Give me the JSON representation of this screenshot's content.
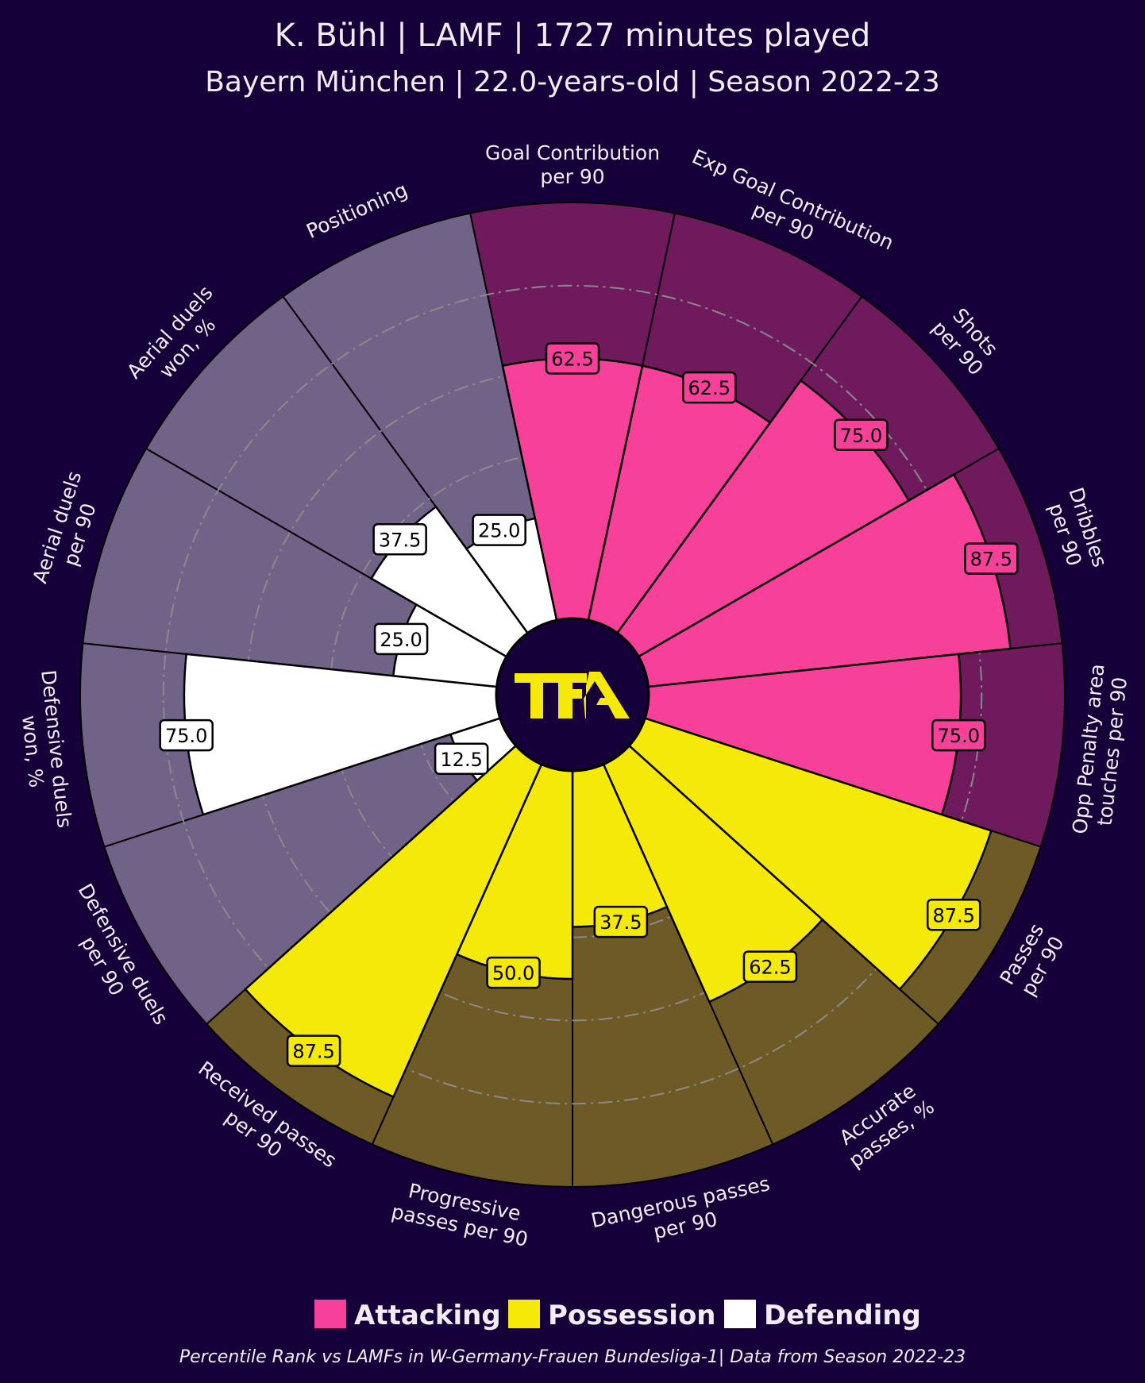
{
  "header": {
    "title": "K. Bühl | LAMF | 1727 minutes played",
    "subtitle": "Bayern München | 22.0-years-old | Season 2022-23"
  },
  "logo_text": "TFA",
  "footer": "Percentile Rank vs LAMFs in W-Germany-Frauen Bundesliga-1| Data from Season 2022-23",
  "colors": {
    "background": "#15003a",
    "Attacking": "#f7409a",
    "Attacking_bg": "#6e1a5c",
    "Possession": "#f5e909",
    "Possession_bg": "#6e5a26",
    "Defending": "#ffffff",
    "Defending_bg": "#716388",
    "logo": "#f5e909"
  },
  "chart_data": {
    "type": "pie",
    "subtype": "polar-bar (pizza)",
    "range": [
      0,
      100
    ],
    "gridlines": [
      20,
      40,
      60,
      80
    ],
    "legend": [
      "Attacking",
      "Possession",
      "Defending"
    ],
    "legend_placement": "bottom",
    "params": [
      {
        "label": [
          "Goal Contribution",
          "per 90"
        ],
        "value": 62.5,
        "group": "Attacking"
      },
      {
        "label": [
          "Exp Goal Contribution",
          "per 90"
        ],
        "value": 62.5,
        "group": "Attacking"
      },
      {
        "label": [
          "Shots",
          "per 90"
        ],
        "value": 75.0,
        "group": "Attacking"
      },
      {
        "label": [
          "Dribbles",
          "per 90"
        ],
        "value": 87.5,
        "group": "Attacking"
      },
      {
        "label": [
          "Opp Penalty area",
          "touches per 90"
        ],
        "value": 75.0,
        "group": "Attacking"
      },
      {
        "label": [
          "Passes",
          "per 90"
        ],
        "value": 87.5,
        "group": "Possession"
      },
      {
        "label": [
          "Accurate",
          "passes, %"
        ],
        "value": 62.5,
        "group": "Possession"
      },
      {
        "label": [
          "Dangerous passes",
          "per 90"
        ],
        "value": 37.5,
        "group": "Possession"
      },
      {
        "label": [
          "Progressive",
          "passes per 90"
        ],
        "value": 50.0,
        "group": "Possession"
      },
      {
        "label": [
          "Received passes",
          "per 90"
        ],
        "value": 87.5,
        "group": "Possession"
      },
      {
        "label": [
          "Defensive duels",
          "per 90"
        ],
        "value": 12.5,
        "group": "Defending"
      },
      {
        "label": [
          "Defensive duels",
          "won, %"
        ],
        "value": 75.0,
        "group": "Defending"
      },
      {
        "label": [
          "Aerial duels",
          "per 90"
        ],
        "value": 25.0,
        "group": "Defending"
      },
      {
        "label": [
          "Aerial duels",
          "won, %"
        ],
        "value": 37.5,
        "group": "Defending"
      },
      {
        "label": [
          "Positioning"
        ],
        "value": 25.0,
        "group": "Defending"
      }
    ]
  }
}
